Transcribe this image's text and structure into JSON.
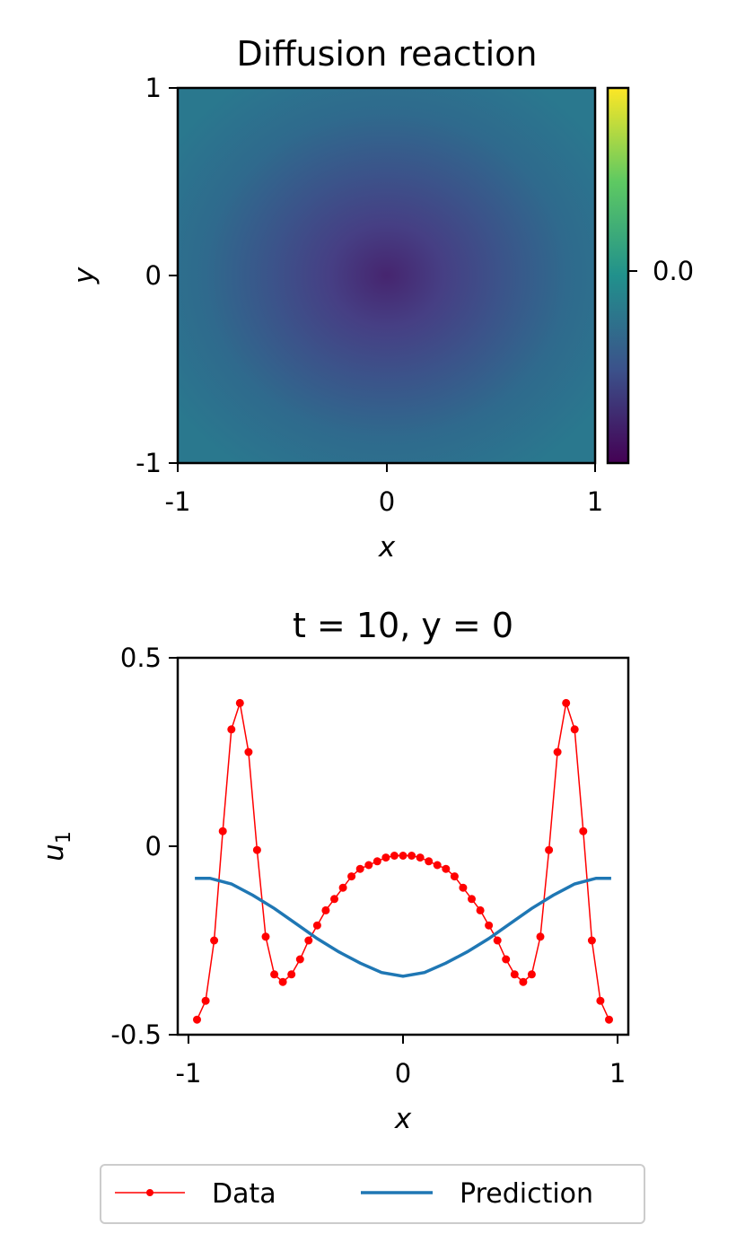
{
  "chart_data": [
    {
      "type": "heatmap",
      "title": "Diffusion reaction",
      "xlabel": "x",
      "ylabel": "y",
      "xlim": [
        -1,
        1
      ],
      "ylim": [
        -1,
        1
      ],
      "x_ticks": [
        "-1",
        "0",
        "1"
      ],
      "y_ticks": [
        "-1",
        "0",
        "1"
      ],
      "colorbar": {
        "colormap": "viridis",
        "tick_labels": [
          "0.0"
        ],
        "tick_value": 0.0
      },
      "field": {
        "center": [
          0,
          0
        ],
        "min_value_at_center": true,
        "background_color": "#2a788e",
        "center_color": "#46256f"
      }
    },
    {
      "type": "line",
      "title": "t = 10, y = 0",
      "xlabel": "x",
      "ylabel": "u",
      "ylabel_subscript": "1",
      "xlim": [
        -1.05,
        1.05
      ],
      "ylim": [
        -0.5,
        0.5
      ],
      "x_ticks": [
        "-1",
        "0",
        "1"
      ],
      "y_ticks": [
        "-0.5",
        "0",
        "0.5"
      ],
      "series": [
        {
          "name": "Data",
          "color": "#ff0000",
          "style": "line-dot",
          "x": [
            -0.96,
            -0.92,
            -0.88,
            -0.84,
            -0.8,
            -0.76,
            -0.72,
            -0.68,
            -0.64,
            -0.6,
            -0.56,
            -0.52,
            -0.48,
            -0.44,
            -0.4,
            -0.36,
            -0.32,
            -0.28,
            -0.24,
            -0.2,
            -0.16,
            -0.12,
            -0.08,
            -0.04,
            0.0,
            0.04,
            0.08,
            0.12,
            0.16,
            0.2,
            0.24,
            0.28,
            0.32,
            0.36,
            0.4,
            0.44,
            0.48,
            0.52,
            0.56,
            0.6,
            0.64,
            0.68,
            0.72,
            0.76,
            0.8,
            0.84,
            0.88,
            0.92,
            0.96
          ],
          "y": [
            -0.46,
            -0.41,
            -0.25,
            0.04,
            0.31,
            0.38,
            0.25,
            -0.01,
            -0.24,
            -0.34,
            -0.36,
            -0.34,
            -0.3,
            -0.25,
            -0.21,
            -0.17,
            -0.14,
            -0.11,
            -0.08,
            -0.06,
            -0.05,
            -0.04,
            -0.03,
            -0.025,
            -0.025,
            -0.025,
            -0.03,
            -0.04,
            -0.05,
            -0.06,
            -0.08,
            -0.11,
            -0.14,
            -0.17,
            -0.21,
            -0.25,
            -0.3,
            -0.34,
            -0.36,
            -0.34,
            -0.24,
            -0.01,
            0.25,
            0.38,
            0.31,
            0.04,
            -0.25,
            -0.41,
            -0.46
          ]
        },
        {
          "name": "Prediction",
          "color": "#1f77b4",
          "style": "line",
          "x": [
            -0.97,
            -0.9,
            -0.8,
            -0.7,
            -0.6,
            -0.5,
            -0.4,
            -0.3,
            -0.2,
            -0.1,
            0.0,
            0.1,
            0.2,
            0.3,
            0.4,
            0.5,
            0.6,
            0.7,
            0.8,
            0.9,
            0.97
          ],
          "y": [
            -0.085,
            -0.085,
            -0.1,
            -0.13,
            -0.165,
            -0.205,
            -0.245,
            -0.28,
            -0.31,
            -0.335,
            -0.345,
            -0.335,
            -0.31,
            -0.28,
            -0.245,
            -0.205,
            -0.165,
            -0.13,
            -0.1,
            -0.085,
            -0.085
          ]
        }
      ]
    }
  ]
}
